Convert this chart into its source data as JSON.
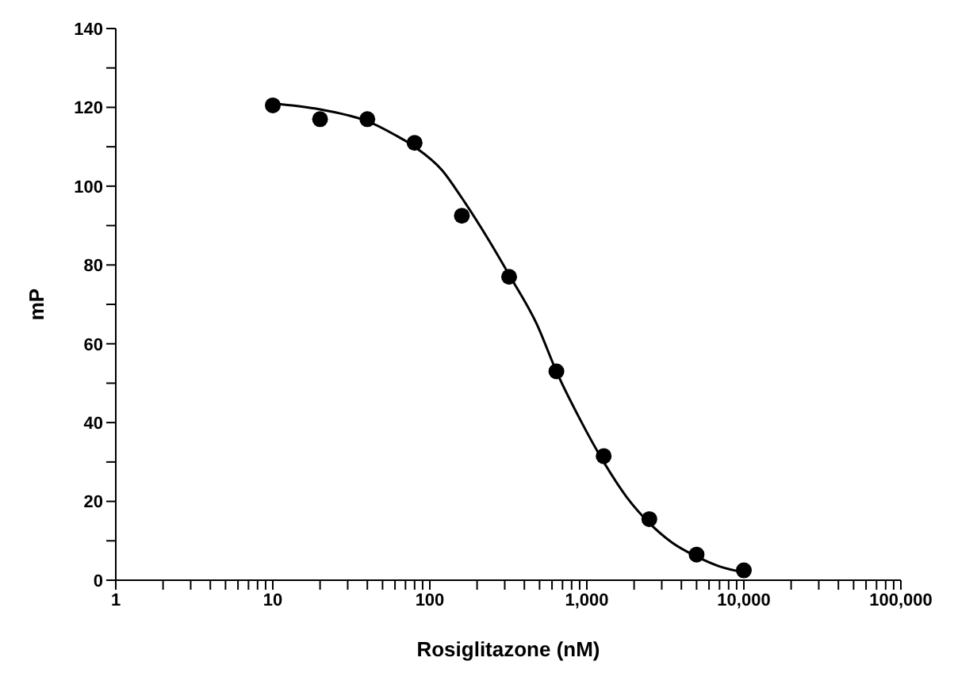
{
  "chart_data": {
    "type": "scatter",
    "xlabel": "Rosiglitazone (nM)",
    "ylabel": "mP",
    "log": "x",
    "marker": "circle",
    "xlim": [
      1,
      100000
    ],
    "xticks": [
      1,
      {
        "value": 2,
        "label": null
      },
      {
        "value": 3,
        "label": null
      },
      {
        "value": 4,
        "label": null
      },
      {
        "value": 5,
        "label": null
      },
      {
        "value": 6,
        "label": null
      },
      {
        "value": 7,
        "label": null
      },
      {
        "value": 8,
        "label": null
      },
      {
        "value": 9,
        "label": null
      },
      10,
      {
        "value": 20,
        "label": null
      },
      {
        "value": 30,
        "label": null
      },
      {
        "value": 40,
        "label": null
      },
      {
        "value": 50,
        "label": null
      },
      {
        "value": 60,
        "label": null
      },
      {
        "value": 70,
        "label": null
      },
      {
        "value": 80,
        "label": null
      },
      {
        "value": 90,
        "label": null
      },
      100,
      {
        "value": 200,
        "label": null
      },
      {
        "value": 300,
        "label": null
      },
      {
        "value": 400,
        "label": null
      },
      {
        "value": 500,
        "label": null
      },
      {
        "value": 600,
        "label": null
      },
      {
        "value": 700,
        "label": null
      },
      {
        "value": 800,
        "label": null
      },
      {
        "value": 900,
        "label": null
      },
      {
        "value": 1000,
        "label": "1,000"
      },
      {
        "value": 2000,
        "label": null
      },
      {
        "value": 3000,
        "label": null
      },
      {
        "value": 4000,
        "label": null
      },
      {
        "value": 5000,
        "label": null
      },
      {
        "value": 6000,
        "label": null
      },
      {
        "value": 7000,
        "label": null
      },
      {
        "value": 8000,
        "label": null
      },
      {
        "value": 9000,
        "label": null
      },
      {
        "value": 10000,
        "label": "10,000"
      },
      {
        "value": 20000,
        "label": null
      },
      {
        "value": 30000,
        "label": null
      },
      {
        "value": 40000,
        "label": null
      },
      {
        "value": 50000,
        "label": null
      },
      {
        "value": 60000,
        "label": null
      },
      {
        "value": 70000,
        "label": null
      },
      {
        "value": 80000,
        "label": null
      },
      {
        "value": 90000,
        "label": null
      },
      {
        "value": 100000,
        "label": "100,000"
      }
    ],
    "ylim": [
      0,
      140
    ],
    "yticks": [
      0,
      {
        "value": 10,
        "label": null
      },
      20,
      {
        "value": 30,
        "label": null
      },
      40,
      {
        "value": 50,
        "label": null
      },
      60,
      {
        "value": 70,
        "label": null
      },
      80,
      {
        "value": 90,
        "label": null
      },
      100,
      {
        "value": 110,
        "label": null
      },
      120,
      {
        "value": 130,
        "label": null
      },
      140
    ],
    "series": [
      {
        "color": "#000000",
        "x": [
          10,
          20,
          40,
          80,
          160,
          320,
          640,
          1280,
          2500,
          5000,
          10000
        ],
        "values": [
          120.5,
          117,
          117,
          111,
          92.5,
          77,
          53,
          31.5,
          15.5,
          6.5,
          2.5
        ]
      },
      {
        "type": "line",
        "color": "#000000",
        "marker": "none",
        "x": [
          10,
          20,
          30,
          40,
          60,
          80,
          120,
          160,
          240,
          320,
          480,
          640,
          900,
          1280,
          1800,
          2500,
          3500,
          5000,
          7000,
          10000
        ],
        "values": [
          121,
          119.5,
          118,
          116.5,
          113,
          110,
          104,
          97,
          86,
          77.5,
          65,
          53,
          41,
          30,
          21,
          14.5,
          9.5,
          6,
          3.5,
          2
        ]
      }
    ]
  }
}
